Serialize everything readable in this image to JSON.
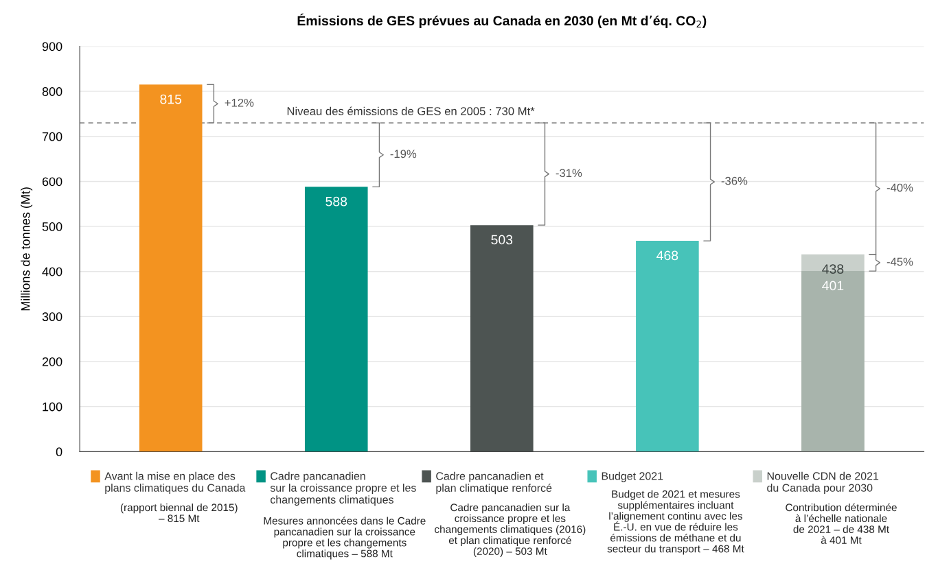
{
  "chart_data": {
    "type": "bar",
    "title": "Émissions de GES prévues au Canada en 2030 (en Mt d’éq. CO$_{2}$)",
    "ylabel": "Millions de tonnes (Mt)",
    "categories": [
      "Avant la mise en place des\nplans climatiques du Canada",
      "Cadre pancanadien\nsur la croissance propre et les\nchangements climatiques",
      "Cadre pancanadien et\nplan climatique renforcé",
      "Budget 2021",
      "Nouvelle CDN de 2021\ndu Canada pour 2030"
    ],
    "series": [
      {
        "color": "#c9d0cb",
        "values": [
          null,
          null,
          null,
          null,
          438
        ],
        "value_labels": [
          null,
          null,
          null,
          null,
          "438"
        ]
      },
      {
        "colors": [
          "#f39320",
          "#009384",
          "#4d5452",
          "#47c3b9",
          "#a8b4ac"
        ],
        "values": [
          815,
          588,
          503,
          468,
          401
        ],
        "value_labels": [
          "815",
          "588",
          "503",
          "468",
          "401"
        ]
      }
    ],
    "ylim": [
      0,
      900
    ],
    "yticks": [
      0,
      100,
      200,
      300,
      400,
      500,
      600,
      700,
      800,
      900
    ],
    "grid": "y",
    "ref_lines": [
      {
        "axis": "y",
        "value": 730,
        "label": "Niveau des émissions de GES en 2005 : 730 Mt*",
        "color": "#555555",
        "line_style": "dashed"
      }
    ],
    "annotations": [
      "(rapport biennal de 2015)\n– 815 Mt",
      "Mesures annoncées dans le Cadre\npancanadien sur la croissance\npropre et les changements\nclimatiques – 588 Mt",
      "Cadre pancanadien sur la\ncroissance propre et les\nchangements climatiques (2016)\net plan climatique renforcé\n(2020) – 503 Mt",
      "Budget de 2021 et mesures\nsupplémentaires incluant\nl’alignement continu avec les\nÉ.-U. en vue de réduire les\némissions de méthane et du\nsecteur du transport – 468 Mt",
      "Contribution déterminée\nà l’échelle nationale\nde 2021 – de 438 Mt\nà 401 Mt",
      "+12%",
      "-19%",
      "-31%",
      "-36%",
      "-40%",
      "-45%"
    ]
  }
}
